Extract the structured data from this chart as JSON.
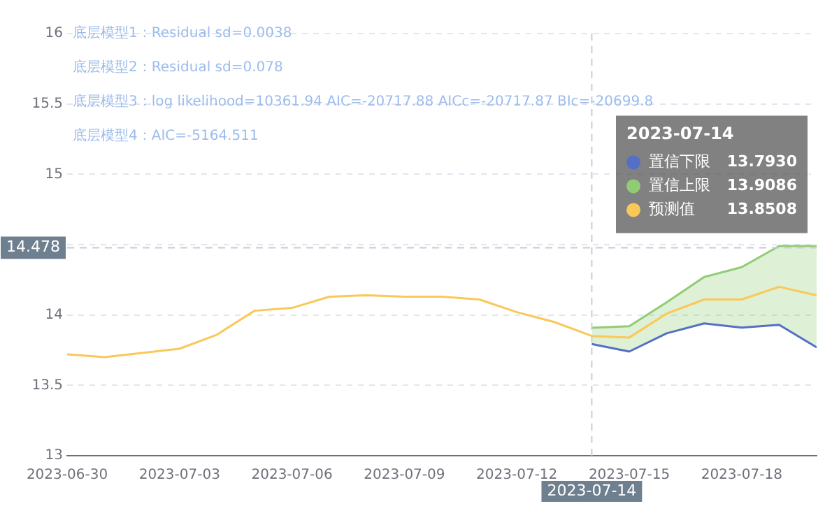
{
  "chart_data": {
    "type": "line",
    "x": [
      "2023-06-30",
      "2023-07-01",
      "2023-07-02",
      "2023-07-03",
      "2023-07-04",
      "2023-07-05",
      "2023-07-06",
      "2023-07-07",
      "2023-07-08",
      "2023-07-09",
      "2023-07-10",
      "2023-07-11",
      "2023-07-12",
      "2023-07-13",
      "2023-07-14",
      "2023-07-15",
      "2023-07-16",
      "2023-07-17",
      "2023-07-18",
      "2023-07-19",
      "2023-07-20"
    ],
    "series": [
      {
        "name": "置信下限",
        "type": "line",
        "color": "#5470c6",
        "values": [
          null,
          null,
          null,
          null,
          null,
          null,
          null,
          null,
          null,
          null,
          null,
          null,
          null,
          null,
          13.793,
          13.74,
          13.87,
          13.94,
          13.91,
          13.93,
          13.77
        ]
      },
      {
        "name": "置信上限",
        "type": "area",
        "color": "#91cc75",
        "values": [
          null,
          null,
          null,
          null,
          null,
          null,
          null,
          null,
          null,
          null,
          null,
          null,
          null,
          null,
          13.9086,
          13.92,
          14.09,
          14.27,
          14.34,
          14.49,
          14.49
        ]
      },
      {
        "name": "预测值",
        "color": "#fac858",
        "values": [
          13.72,
          13.7,
          13.73,
          13.76,
          13.86,
          14.03,
          14.05,
          14.13,
          14.14,
          14.13,
          14.13,
          14.11,
          14.02,
          13.95,
          13.8508,
          13.84,
          14.01,
          14.11,
          14.11,
          14.2,
          14.14
        ]
      }
    ],
    "xlim": [
      "2023-06-30",
      "2023-07-20"
    ],
    "xticks": [
      "2023-06-30",
      "2023-07-03",
      "2023-07-06",
      "2023-07-09",
      "2023-07-12",
      "2023-07-15",
      "2023-07-18"
    ],
    "ylim": [
      13,
      16
    ],
    "yticks": [
      13,
      13.5,
      14,
      {
        "value": 14.5,
        "label": null
      },
      15,
      15.5,
      16
    ],
    "grid": "y",
    "marker": "none",
    "legend": "top right",
    "ref_lines": [
      {
        "axis": "x",
        "value": "2023-07-14",
        "label": "2023-07-14",
        "line_style": "dashed"
      },
      {
        "axis": "y",
        "value": 14.478,
        "label": "14.478",
        "line_style": "dashed"
      }
    ],
    "annotations": [
      "底层模型1：Residual sd=0.0038",
      "底层模型2：Residual sd=0.078",
      "底层模型3：log likelihood=10361.94 AIC=-20717.88 AICc=-20717.87 BIc=-20699.8",
      "底层模型4：AIC=-5164.511",
      "13.7930",
      "13.9086",
      "13.8508"
    ]
  }
}
